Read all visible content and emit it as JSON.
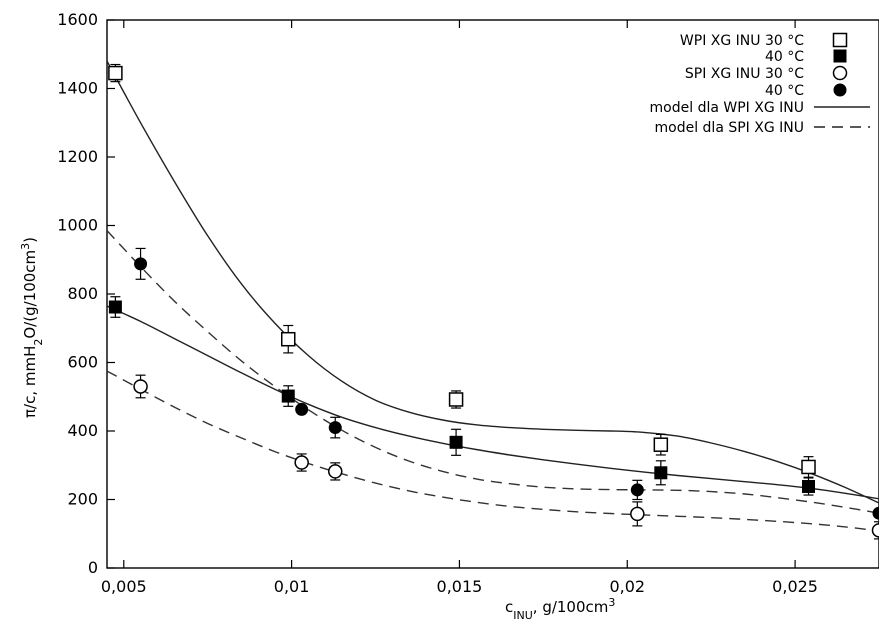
{
  "chart_data": {
    "type": "scatter",
    "x_ticks": [
      "0,005",
      "0,01",
      "0,015",
      "0,02",
      "0,025"
    ],
    "y_ticks": [
      "0",
      "200",
      "400",
      "600",
      "800",
      "1000",
      "1200",
      "1400",
      "1600"
    ],
    "xlim": [
      0.0045,
      0.0275
    ],
    "ylim": [
      0,
      1600
    ],
    "x_label": {
      "main": "c",
      "sub": "INU",
      "rest": ", g/100cm",
      "sup": "3"
    },
    "y_label": {
      "p1": "π/c, mmH",
      "sub": "2",
      "p2": "O/(g/100cm",
      "sup": "3",
      "p3": ")"
    },
    "grid": false,
    "legend_position": "top-right",
    "legend": [
      {
        "label": "WPI XG INU 30 °C",
        "marker": "open-square"
      },
      {
        "label": "40 °C",
        "marker": "filled-square"
      },
      {
        "label": "SPI XG INU 30 °C",
        "marker": "open-circle"
      },
      {
        "label": "40 °C",
        "marker": "filled-circle"
      },
      {
        "label": "model dla WPI XG INU",
        "line": "solid"
      },
      {
        "label": "model dla SPI XG INU",
        "line": "dashed"
      }
    ],
    "series": [
      {
        "name": "WPI XG INU 30 °C",
        "marker": "open-square",
        "points": [
          {
            "x": 0.00475,
            "y": 1445,
            "err": 25
          },
          {
            "x": 0.0099,
            "y": 668,
            "err": 40
          },
          {
            "x": 0.0149,
            "y": 492,
            "err": 25
          },
          {
            "x": 0.021,
            "y": 360,
            "err": 30
          },
          {
            "x": 0.0254,
            "y": 295,
            "err": 30
          }
        ]
      },
      {
        "name": "WPI XG INU 40 °C",
        "marker": "filled-square",
        "points": [
          {
            "x": 0.00475,
            "y": 762,
            "err": 30
          },
          {
            "x": 0.0099,
            "y": 502,
            "err": 30
          },
          {
            "x": 0.0149,
            "y": 367,
            "err": 38
          },
          {
            "x": 0.021,
            "y": 278,
            "err": 35
          },
          {
            "x": 0.0254,
            "y": 238,
            "err": 25
          }
        ]
      },
      {
        "name": "SPI XG INU 30 °C",
        "marker": "open-circle",
        "points": [
          {
            "x": 0.0055,
            "y": 530,
            "err": 33
          },
          {
            "x": 0.0103,
            "y": 308,
            "err": 25
          },
          {
            "x": 0.0113,
            "y": 282,
            "err": 25
          },
          {
            "x": 0.0203,
            "y": 158,
            "err": 35
          },
          {
            "x": 0.0275,
            "y": 110,
            "err": 25
          }
        ]
      },
      {
        "name": "SPI XG INU 40 °C",
        "marker": "filled-circle",
        "points": [
          {
            "x": 0.0055,
            "y": 888,
            "err": 45
          },
          {
            "x": 0.0103,
            "y": 463,
            "err": 0
          },
          {
            "x": 0.0113,
            "y": 410,
            "err": 30
          },
          {
            "x": 0.0203,
            "y": 228,
            "err": 28
          },
          {
            "x": 0.0275,
            "y": 160,
            "err": 0
          }
        ]
      }
    ],
    "models": [
      {
        "name": "model dla WPI XG INU",
        "line": "solid",
        "curves": [
          {
            "points": [
              [
                0.0045,
                1480
              ],
              [
                0.0055,
                1300
              ],
              [
                0.0065,
                1130
              ],
              [
                0.0075,
                970
              ],
              [
                0.0085,
                830
              ],
              [
                0.0095,
                715
              ],
              [
                0.0105,
                620
              ],
              [
                0.0115,
                545
              ],
              [
                0.0125,
                490
              ],
              [
                0.0135,
                455
              ],
              [
                0.0145,
                432
              ],
              [
                0.0155,
                418
              ],
              [
                0.0165,
                410
              ],
              [
                0.0175,
                405
              ],
              [
                0.0185,
                402
              ],
              [
                0.0195,
                400
              ],
              [
                0.0205,
                396
              ],
              [
                0.0215,
                385
              ],
              [
                0.0225,
                365
              ],
              [
                0.0235,
                340
              ],
              [
                0.0245,
                310
              ],
              [
                0.0255,
                275
              ],
              [
                0.0265,
                235
              ],
              [
                0.0275,
                190
              ]
            ]
          },
          {
            "points": [
              [
                0.0045,
                765
              ],
              [
                0.0055,
                720
              ],
              [
                0.0065,
                670
              ],
              [
                0.0075,
                620
              ],
              [
                0.0085,
                570
              ],
              [
                0.0095,
                522
              ],
              [
                0.0105,
                478
              ],
              [
                0.0115,
                440
              ],
              [
                0.0125,
                410
              ],
              [
                0.0135,
                385
              ],
              [
                0.0145,
                364
              ],
              [
                0.0155,
                346
              ],
              [
                0.0165,
                330
              ],
              [
                0.0175,
                316
              ],
              [
                0.0185,
                303
              ],
              [
                0.0195,
                291
              ],
              [
                0.0205,
                280
              ],
              [
                0.0215,
                270
              ],
              [
                0.0225,
                261
              ],
              [
                0.0235,
                252
              ],
              [
                0.0245,
                243
              ],
              [
                0.0255,
                232
              ],
              [
                0.0265,
                218
              ],
              [
                0.0275,
                202
              ]
            ]
          }
        ]
      },
      {
        "name": "model dla SPI XG INU",
        "line": "dashed",
        "curves": [
          {
            "points": [
              [
                0.0045,
                985
              ],
              [
                0.0055,
                880
              ],
              [
                0.0065,
                780
              ],
              [
                0.0075,
                690
              ],
              [
                0.0085,
                605
              ],
              [
                0.0095,
                530
              ],
              [
                0.0105,
                462
              ],
              [
                0.0115,
                402
              ],
              [
                0.0125,
                352
              ],
              [
                0.0135,
                312
              ],
              [
                0.0145,
                282
              ],
              [
                0.0155,
                260
              ],
              [
                0.0165,
                246
              ],
              [
                0.0175,
                236
              ],
              [
                0.0185,
                231
              ],
              [
                0.0195,
                229
              ],
              [
                0.0205,
                228
              ],
              [
                0.0215,
                227
              ],
              [
                0.0225,
                223
              ],
              [
                0.0235,
                216
              ],
              [
                0.0245,
                205
              ],
              [
                0.0255,
                192
              ],
              [
                0.0265,
                177
              ],
              [
                0.0275,
                160
              ]
            ]
          },
          {
            "points": [
              [
                0.0045,
                575
              ],
              [
                0.0055,
                522
              ],
              [
                0.0065,
                470
              ],
              [
                0.0075,
                422
              ],
              [
                0.0085,
                380
              ],
              [
                0.0095,
                340
              ],
              [
                0.0105,
                305
              ],
              [
                0.0115,
                275
              ],
              [
                0.0125,
                248
              ],
              [
                0.0135,
                225
              ],
              [
                0.0145,
                207
              ],
              [
                0.0155,
                192
              ],
              [
                0.0165,
                180
              ],
              [
                0.0175,
                171
              ],
              [
                0.0185,
                164
              ],
              [
                0.0195,
                159
              ],
              [
                0.0205,
                155
              ],
              [
                0.0215,
                151
              ],
              [
                0.0225,
                147
              ],
              [
                0.0235,
                142
              ],
              [
                0.0245,
                136
              ],
              [
                0.0255,
                129
              ],
              [
                0.0265,
                120
              ],
              [
                0.0275,
                108
              ]
            ]
          }
        ]
      }
    ]
  }
}
